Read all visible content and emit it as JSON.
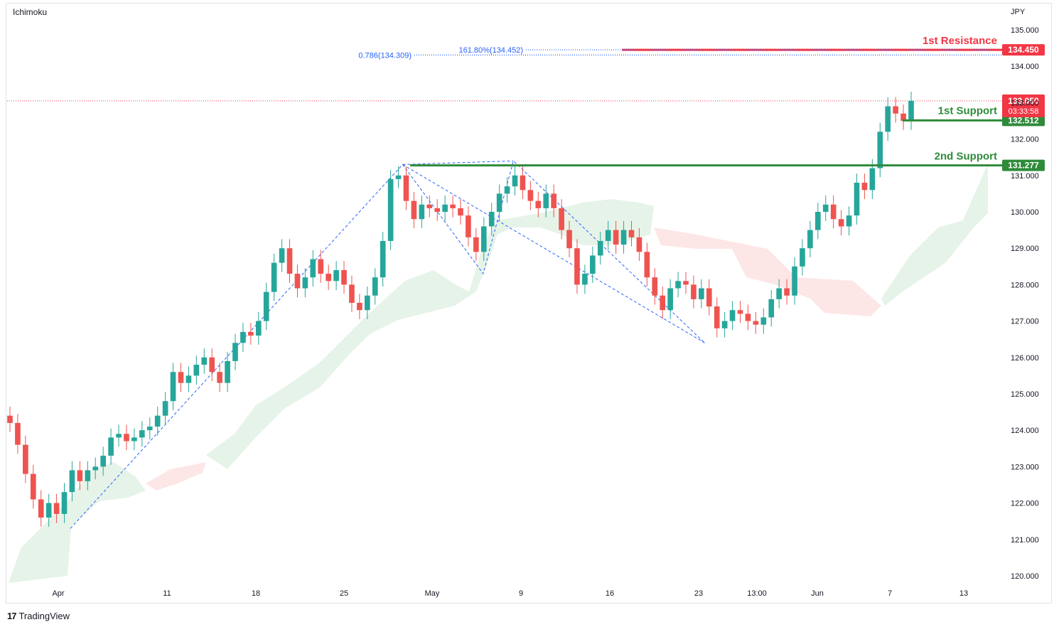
{
  "indicator_label": "Ichimoku",
  "brand": {
    "logo_glyph": "17",
    "name": "TradingView"
  },
  "chart_data": {
    "type": "candlestick",
    "currency": "JPY",
    "y_ticks": [
      "135.000",
      "134.000",
      "133.000",
      "132.000",
      "131.000",
      "130.000",
      "129.000",
      "128.000",
      "127.000",
      "126.000",
      "125.000",
      "124.000",
      "123.000",
      "122.000",
      "121.000",
      "120.000"
    ],
    "ylim": [
      119.8,
      135.7
    ],
    "x_ticks": [
      "Apr",
      "11",
      "18",
      "25",
      "May",
      "9",
      "16",
      "23",
      "13:00",
      "Jun",
      "7",
      "13"
    ],
    "current_price": {
      "value": "133.050",
      "countdown": "03:33:58",
      "color": "#f23645"
    },
    "levels": [
      {
        "label": "1st Resistance",
        "value": 134.45,
        "tag": "134.450",
        "color": "#f23645"
      },
      {
        "label": "1st Support",
        "value": 132.512,
        "tag": "132.512",
        "color": "#2e8b3a"
      },
      {
        "label": "2nd Support",
        "value": 131.277,
        "tag": "131.277",
        "color": "#2e8b3a"
      }
    ],
    "fibonacci": [
      {
        "label": "0.786(134.309)",
        "value": 134.309
      },
      {
        "label": "161.80%(134.452)",
        "value": 134.452
      }
    ],
    "colors": {
      "up": "#26a69a",
      "down": "#ef5350",
      "cloud_bull": "#e3f2e6",
      "cloud_bear": "#fde3e3",
      "pattern": "#2962ff"
    },
    "pattern_points": [
      {
        "t": 0.06,
        "price": 121.3
      },
      {
        "t": 0.39,
        "price": 131.3
      },
      {
        "t": 0.47,
        "price": 128.3
      },
      {
        "t": 0.5,
        "price": 131.4
      },
      {
        "t": 0.69,
        "price": 126.4
      }
    ],
    "candles_close_path": [
      124.2,
      123.6,
      122.8,
      122.1,
      121.6,
      122.0,
      121.7,
      122.3,
      122.9,
      122.6,
      122.9,
      123.0,
      123.3,
      123.8,
      123.9,
      123.7,
      123.8,
      124.0,
      124.1,
      124.4,
      124.8,
      125.6,
      125.3,
      125.5,
      125.8,
      126.0,
      125.6,
      125.3,
      125.9,
      126.4,
      126.7,
      126.6,
      127.0,
      127.8,
      128.6,
      129.0,
      128.3,
      127.9,
      128.2,
      128.7,
      128.3,
      128.1,
      128.4,
      128.0,
      127.5,
      127.3,
      127.7,
      128.2,
      129.2,
      130.9,
      131.0,
      130.3,
      129.8,
      130.2,
      130.1,
      130.0,
      130.2,
      130.1,
      129.9,
      129.3,
      128.9,
      129.6,
      130.0,
      130.5,
      130.7,
      131.0,
      130.6,
      130.3,
      130.1,
      130.5,
      130.1,
      129.5,
      129.0,
      128.0,
      128.3,
      128.8,
      129.2,
      129.5,
      129.1,
      129.5,
      129.3,
      128.9,
      128.2,
      127.7,
      127.3,
      127.9,
      128.1,
      128.0,
      127.6,
      127.9,
      127.4,
      126.8,
      127.0,
      127.3,
      127.2,
      127.0,
      126.9,
      127.1,
      127.6,
      127.9,
      127.7,
      128.5,
      129.0,
      129.5,
      130.0,
      130.2,
      129.8,
      129.6,
      129.9,
      130.8,
      130.6,
      131.2,
      132.2,
      132.9,
      132.7,
      132.5,
      133.05
    ]
  }
}
